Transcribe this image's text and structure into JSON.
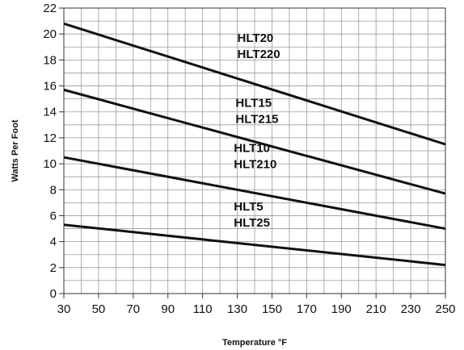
{
  "chart_data": {
    "type": "line",
    "title": "",
    "xlabel": "Temperature °F",
    "ylabel": "Watts Per Foot",
    "xlim": [
      30,
      250
    ],
    "ylim": [
      0,
      22
    ],
    "x_ticks": [
      30,
      50,
      70,
      90,
      110,
      130,
      150,
      170,
      190,
      210,
      230,
      250
    ],
    "y_ticks": [
      0,
      2,
      4,
      6,
      8,
      10,
      12,
      14,
      16,
      18,
      20,
      22
    ],
    "grid": true,
    "grid_minor_x_step": 10,
    "grid_minor_y_step": 1,
    "series": [
      {
        "x": [
          30,
          250
        ],
        "y": [
          20.8,
          11.5
        ],
        "labels": [
          "HLT20",
          "HLT220"
        ],
        "label_x": 130,
        "label_y": 19.4
      },
      {
        "x": [
          30,
          250
        ],
        "y": [
          15.7,
          7.7
        ],
        "labels": [
          "HLT15",
          "HLT215"
        ],
        "label_x": 129,
        "label_y": 14.4
      },
      {
        "x": [
          30,
          250
        ],
        "y": [
          10.5,
          5.0
        ],
        "labels": [
          "HLT10",
          "HLT210"
        ],
        "label_x": 128,
        "label_y": 10.9
      },
      {
        "x": [
          30,
          250
        ],
        "y": [
          5.3,
          2.2
        ],
        "labels": [
          "HLT5",
          "HLT25"
        ],
        "label_x": 128,
        "label_y": 6.4
      }
    ]
  }
}
